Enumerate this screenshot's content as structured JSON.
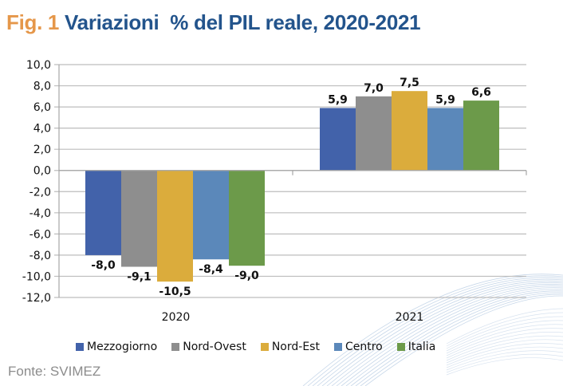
{
  "title": {
    "fig": "Fig. 1",
    "main": "Variazioni  % del PIL reale, 2020-2021"
  },
  "source": "Fonte: SVIMEZ",
  "chart_data": {
    "type": "bar",
    "title": "Variazioni % del PIL reale, 2020-2021",
    "xlabel": "",
    "ylabel": "",
    "categories": [
      "2020",
      "2021"
    ],
    "ylim": [
      -12,
      10
    ],
    "yticks": [
      10,
      8,
      6,
      4,
      2,
      0,
      -2,
      -4,
      -6,
      -8,
      -10,
      -12
    ],
    "ytick_labels": [
      "10,0",
      "8,0",
      "6,0",
      "4,0",
      "2,0",
      "0,0",
      "-2,0",
      "-4,0",
      "-6,0",
      "-8,0",
      "-10,0",
      "-12,0"
    ],
    "grid": true,
    "legend_position": "bottom",
    "series": [
      {
        "name": "Mezzogiorno",
        "color": "#4262aa",
        "values": [
          -8.0,
          5.9
        ],
        "labels": [
          "-8,0",
          "5,9"
        ]
      },
      {
        "name": "Nord-Ovest",
        "color": "#8e8e8e",
        "values": [
          -9.1,
          7.0
        ],
        "labels": [
          "-9,1",
          "7,0"
        ]
      },
      {
        "name": "Nord-Est",
        "color": "#dbac3c",
        "values": [
          -10.5,
          7.5
        ],
        "labels": [
          "-10,5",
          "7,5"
        ]
      },
      {
        "name": "Centro",
        "color": "#5b88ba",
        "values": [
          -8.4,
          5.9
        ],
        "labels": [
          "-8,4",
          "5,9"
        ]
      },
      {
        "name": "Italia",
        "color": "#6c9a4a",
        "values": [
          -9.0,
          6.6
        ],
        "labels": [
          "-9,0",
          "6,6"
        ]
      }
    ]
  }
}
